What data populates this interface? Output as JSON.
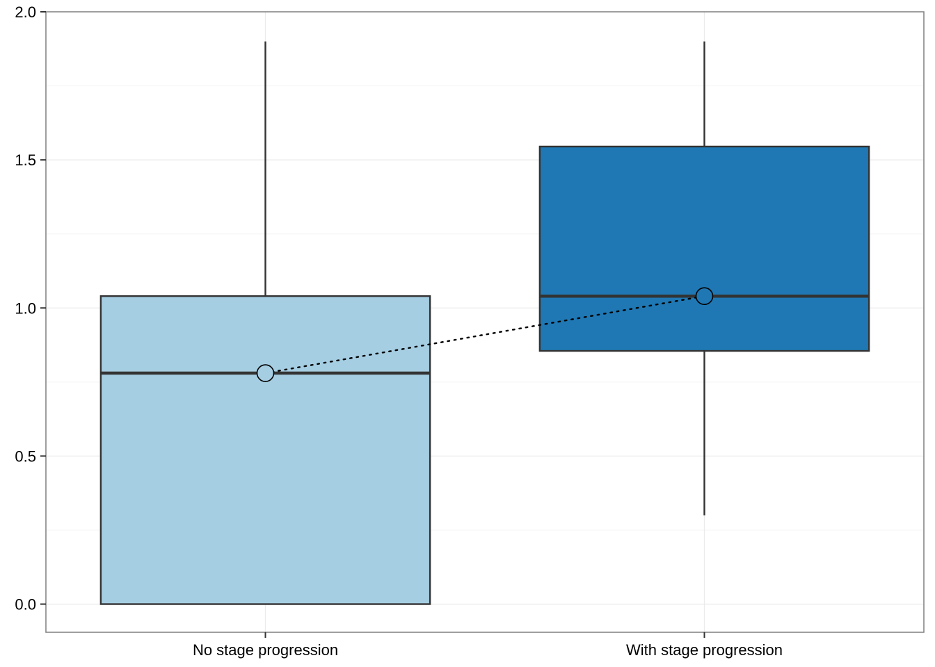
{
  "chart_data": {
    "type": "box",
    "categories": [
      "No stage progression",
      "With stage progression"
    ],
    "boxes": [
      {
        "category": "No stage progression",
        "whisker_low": 0.0,
        "q1": 0.0,
        "median": 0.78,
        "q3": 1.04,
        "whisker_high": 1.9,
        "mean": 0.78,
        "fill": "#a6cee3"
      },
      {
        "category": "With stage progression",
        "whisker_low": 0.3,
        "q1": 0.855,
        "median": 1.04,
        "q3": 1.545,
        "whisker_high": 1.9,
        "mean": 1.04,
        "fill": "#1f78b4"
      }
    ],
    "yticks": [
      "0.0",
      "0.5",
      "1.0",
      "1.5",
      "2.0"
    ],
    "ylim": [
      -0.095,
      2.0
    ],
    "grid": true,
    "mean_line": "dotted"
  }
}
